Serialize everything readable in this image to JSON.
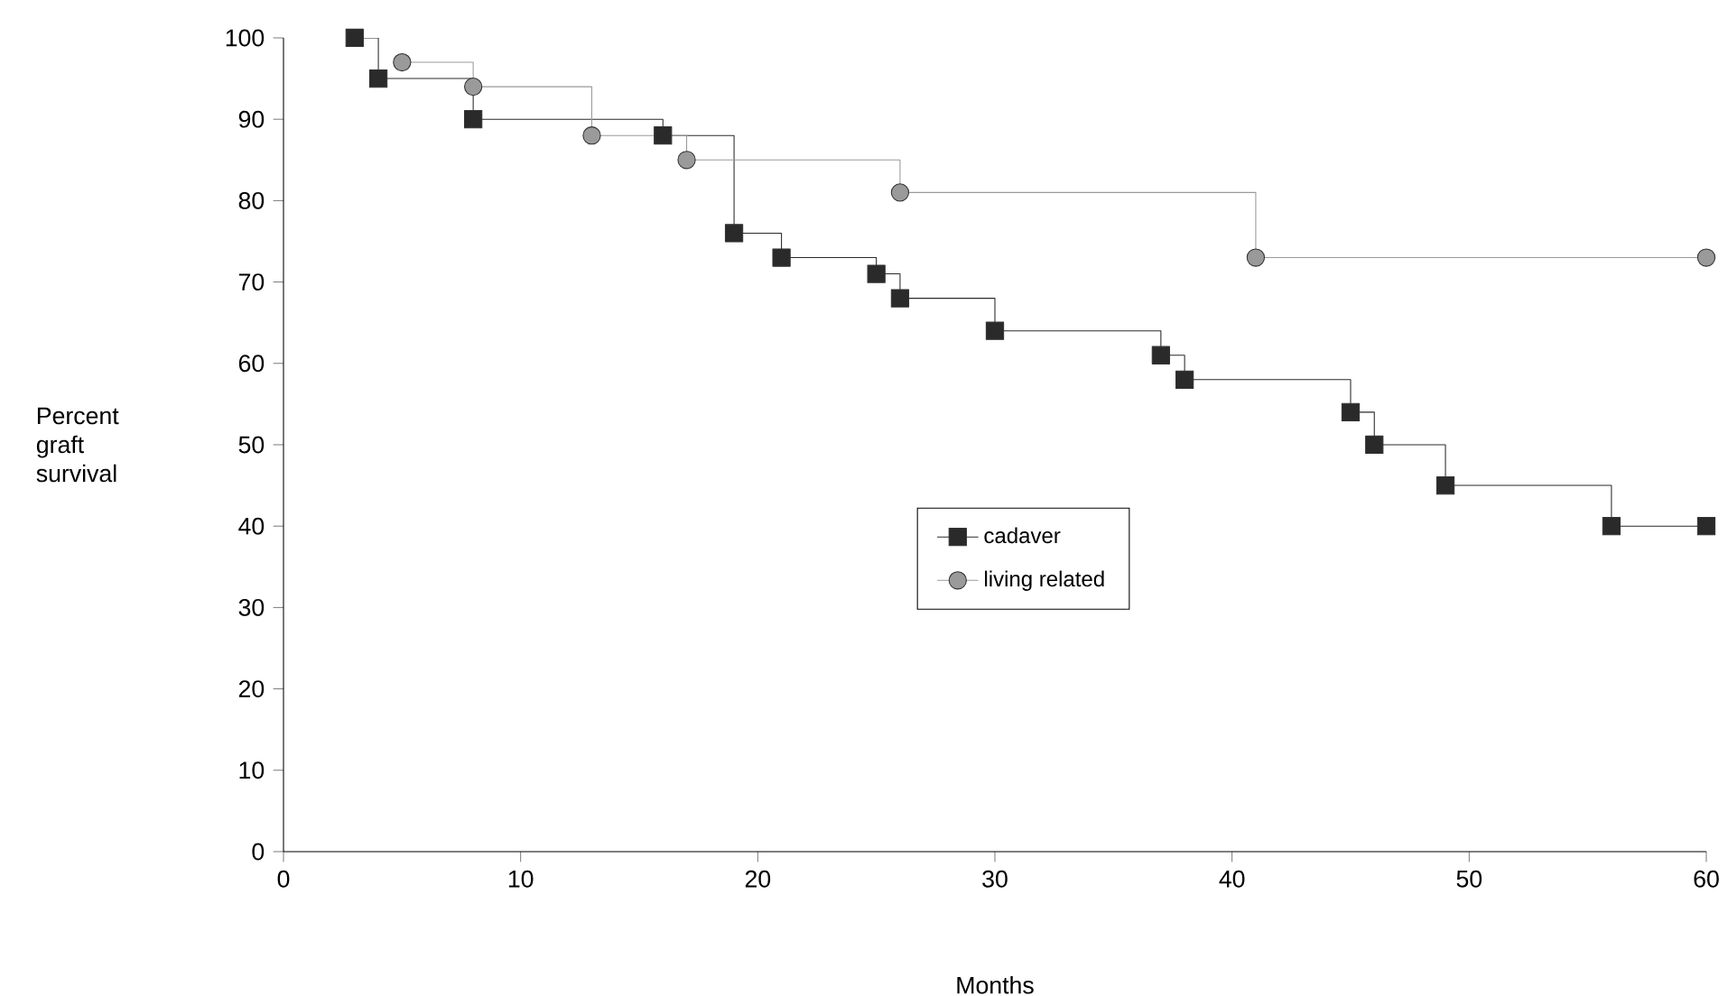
{
  "chart_data": {
    "type": "step",
    "xlabel": "Months",
    "ylabel": "Percent graft survival",
    "xlim": [
      0,
      60
    ],
    "xticks": [
      0,
      10,
      20,
      30,
      40,
      50,
      60
    ],
    "ylim": [
      0,
      100
    ],
    "yticks": [
      0,
      10,
      20,
      30,
      40,
      50,
      60,
      70,
      80,
      90,
      100
    ],
    "grid": false,
    "legend": "center",
    "series": [
      {
        "name": "cadaver",
        "color": "#2a2a2a",
        "marker": "square",
        "x": [
          3,
          4,
          8,
          16,
          19,
          21,
          25,
          26,
          30,
          37,
          38,
          45,
          46,
          49,
          56,
          60
        ],
        "values": [
          100,
          95,
          90,
          88,
          76,
          73,
          71,
          68,
          64,
          61,
          58,
          54,
          50,
          45,
          40,
          40
        ]
      },
      {
        "name": "living related",
        "color": "#9a9a9a",
        "marker": "circle",
        "x": [
          5,
          8,
          13,
          17,
          26,
          41,
          60
        ],
        "values": [
          97,
          94,
          88,
          85,
          81,
          73,
          73
        ]
      }
    ]
  }
}
